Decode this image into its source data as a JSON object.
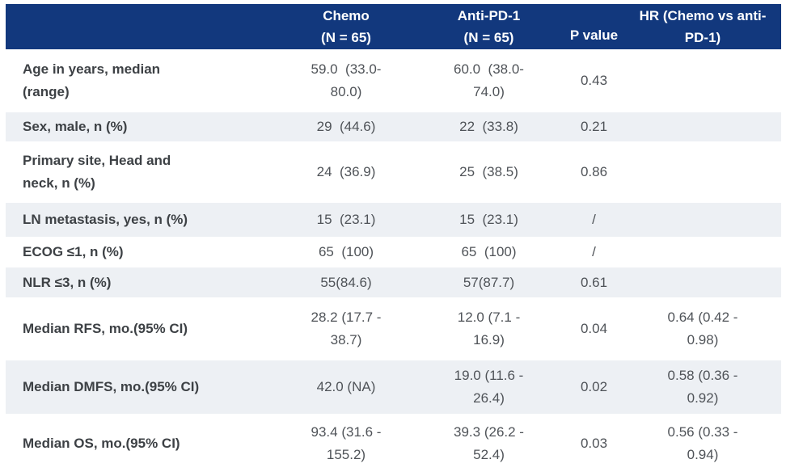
{
  "colors": {
    "header_bg": "#12387d",
    "header_text": "#ffffff",
    "stripe_bg": "#edf0f4",
    "label_text": "#3d4145",
    "value_text": "#4f5358"
  },
  "header": {
    "row_label": "",
    "chemo": "Chemo\n(N = 65)",
    "anti_pd1": "Anti-PD-1\n(N = 65)",
    "p_value": "P value",
    "hr": "HR (Chemo vs anti-\nPD-1)"
  },
  "rows": [
    {
      "label": "Age in years, median\n(range)",
      "chemo": "59.0  (33.0-\n80.0)",
      "anti_pd1": "60.0  (38.0-\n74.0)",
      "p_value": "0.43",
      "hr": ""
    },
    {
      "label": "Sex, male, n (%)",
      "chemo": "29  (44.6)",
      "anti_pd1": "22  (33.8)",
      "p_value": "0.21",
      "hr": ""
    },
    {
      "label": "Primary site, Head and\nneck, n (%)",
      "chemo": "24  (36.9)",
      "anti_pd1": "25  (38.5)",
      "p_value": "0.86",
      "hr": ""
    },
    {
      "label": "LN metastasis, yes, n (%)",
      "chemo": "15  (23.1)",
      "anti_pd1": "15  (23.1)",
      "p_value": "/",
      "hr": ""
    },
    {
      "label": "ECOG ≤1, n (%)",
      "chemo": "65  (100)",
      "anti_pd1": "65  (100)",
      "p_value": "/",
      "hr": ""
    },
    {
      "label": "NLR ≤3, n (%)",
      "chemo": "55(84.6)",
      "anti_pd1": "57(87.7)",
      "p_value": "0.61",
      "hr": ""
    },
    {
      "label": "Median RFS, mo.(95% CI)",
      "chemo": "28.2 (17.7 -\n38.7)",
      "anti_pd1": "12.0 (7.1 -\n16.9)",
      "p_value": "0.04",
      "hr": "0.64 (0.42 -\n0.98)"
    },
    {
      "label": "Median DMFS, mo.(95% CI)",
      "chemo": "42.0 (NA)",
      "anti_pd1": "19.0 (11.6 -\n26.4)",
      "p_value": "0.02",
      "hr": "0.58 (0.36 -\n0.92)"
    },
    {
      "label": "Median OS, mo.(95% CI)",
      "chemo": "93.4 (31.6 -\n155.2)",
      "anti_pd1": "39.3 (26.2 -\n52.4)",
      "p_value": "0.03",
      "hr": "0.56 (0.33 -\n0.94)"
    }
  ],
  "chart_data": {
    "type": "table",
    "title": "",
    "columns": [
      "",
      "Chemo (N = 65)",
      "Anti-PD-1 (N = 65)",
      "P value",
      "HR (Chemo vs anti-PD-1)"
    ],
    "rows": [
      [
        "Age in years, median (range)",
        "59.0 (33.0-80.0)",
        "60.0 (38.0-74.0)",
        "0.43",
        ""
      ],
      [
        "Sex, male, n (%)",
        "29 (44.6)",
        "22 (33.8)",
        "0.21",
        ""
      ],
      [
        "Primary site, Head and neck, n (%)",
        "24 (36.9)",
        "25 (38.5)",
        "0.86",
        ""
      ],
      [
        "LN metastasis, yes, n (%)",
        "15 (23.1)",
        "15 (23.1)",
        "/",
        ""
      ],
      [
        "ECOG ≤1, n (%)",
        "65 (100)",
        "65 (100)",
        "/",
        ""
      ],
      [
        "NLR ≤3, n (%)",
        "55(84.6)",
        "57(87.7)",
        "0.61",
        ""
      ],
      [
        "Median RFS, mo.(95% CI)",
        "28.2 (17.7 - 38.7)",
        "12.0 (7.1 - 16.9)",
        "0.04",
        "0.64 (0.42 - 0.98)"
      ],
      [
        "Median DMFS, mo.(95% CI)",
        "42.0 (NA)",
        "19.0 (11.6 - 26.4)",
        "0.02",
        "0.58 (0.36 - 0.92)"
      ],
      [
        "Median OS, mo.(95% CI)",
        "93.4 (31.6 - 155.2)",
        "39.3 (26.2 - 52.4)",
        "0.03",
        "0.56 (0.33 - 0.94)"
      ]
    ]
  }
}
